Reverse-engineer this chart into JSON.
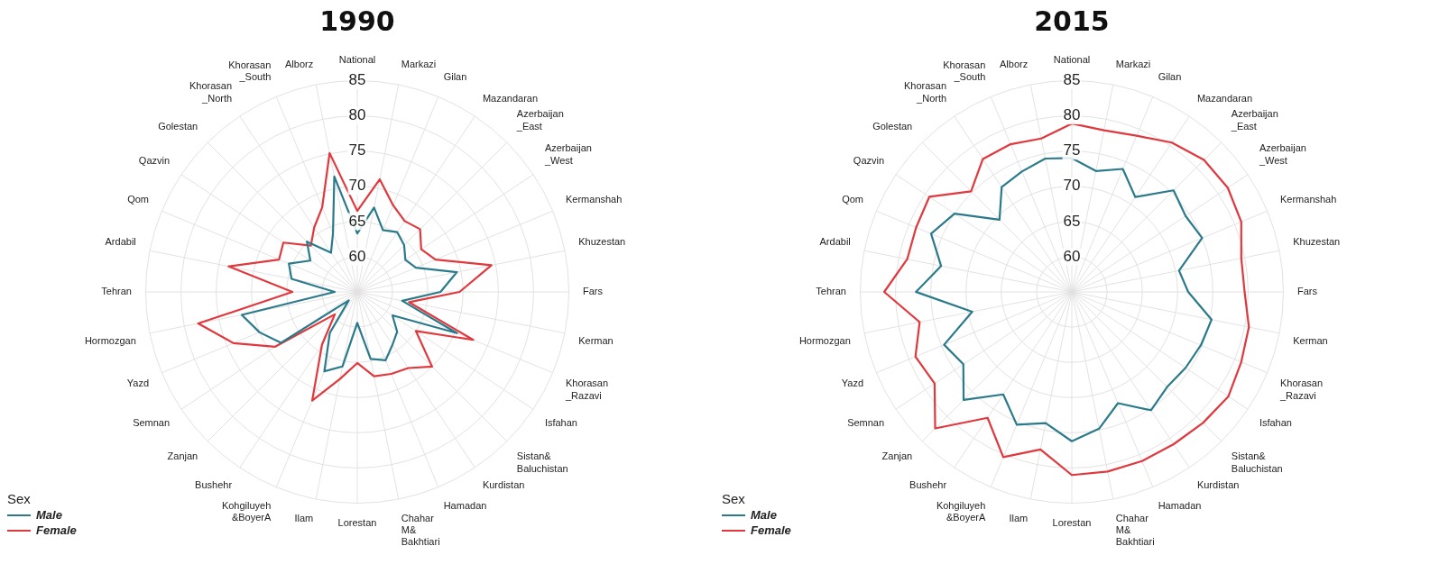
{
  "chart_data": [
    {
      "type": "radar",
      "title": "1990",
      "legend_title": "Sex",
      "legend": "bottom left",
      "grid": true,
      "ylim": [
        55,
        85
      ],
      "yticks": [
        60,
        65,
        70,
        75,
        80,
        85
      ],
      "categories": [
        "National",
        "Markazi",
        "Gilan",
        "Mazandaran",
        "Azerbaijan\n_East",
        "Azerbaijan\n_West",
        "Kermanshah",
        "Khuzestan",
        "Fars",
        "Kerman",
        "Khorasan\n_Razavi",
        "Isfahan",
        "Sistan&\nBaluchistan",
        "Kurdistan",
        "Hamadan",
        "Chahar\nM&\nBakhtiari",
        "Lorestan",
        "Ilam",
        "Kohgiluyeh\n&BoyerA",
        "Bushehr",
        "Zanjan",
        "Semnan",
        "Yazd",
        "Hormozgan",
        "Tehran",
        "Ardabil",
        "Qom",
        "Qazvin",
        "Golestan",
        "Khorasan\n_North",
        "Khorasan\n_South",
        "Alborz"
      ],
      "series": [
        {
          "name": "Male",
          "color": "#2b7a8b",
          "values": [
            63.3,
            67.2,
            64.5,
            65.2,
            64.4,
            63.2,
            64,
            69.4,
            66.8,
            61.5,
            70.3,
            61,
            63,
            64,
            65.5,
            64.7,
            59.4,
            65.8,
            67.2,
            62,
            56.7,
            68,
            70,
            71.7,
            58.2,
            64.5,
            65.5,
            63,
            65.1,
            61.7,
            64,
            71.7
          ]
        },
        {
          "name": "Female",
          "color": "#e0383d",
          "values": [
            66.5,
            71.3,
            68.3,
            67.1,
            67.6,
            65.9,
            67,
            74.4,
            69.5,
            62.5,
            72.8,
            65,
            70,
            68,
            67.6,
            67.2,
            65.1,
            67.6,
            71.7,
            64,
            59.5,
            69,
            74,
            78,
            64.2,
            73.6,
            67,
            67.6,
            64.3,
            66,
            68,
            75.1
          ]
        }
      ]
    },
    {
      "type": "radar",
      "title": "2015",
      "legend_title": "Sex",
      "legend": "bottom left",
      "grid": true,
      "ylim": [
        55,
        85
      ],
      "yticks": [
        60,
        65,
        70,
        75,
        80,
        85
      ],
      "categories": [
        "National",
        "Markazi",
        "Gilan",
        "Mazandaran",
        "Azerbaijan\n_East",
        "Azerbaijan\n_West",
        "Kermanshah",
        "Khuzestan",
        "Fars",
        "Kerman",
        "Khorasan\n_Razavi",
        "Isfahan",
        "Sistan&\nBaluchistan",
        "Kurdistan",
        "Hamadan",
        "Chahar\nM&\nBakhtiari",
        "Lorestan",
        "Ilam",
        "Kohgiluyeh\n&BoyerA",
        "Bushehr",
        "Zanjan",
        "Semnan",
        "Yazd",
        "Hormozgan",
        "Tehran",
        "Ardabil",
        "Qom",
        "Qazvin",
        "Golestan",
        "Khorasan\n_North",
        "Khorasan\n_South",
        "Alborz"
      ],
      "series": [
        {
          "name": "Male",
          "color": "#2b7a8b",
          "values": [
            74,
            72.5,
            73.9,
            71.2,
            75.4,
            74.4,
            75,
            70.5,
            71.5,
            75.2,
            74.8,
            74.4,
            74.1,
            75.2,
            72.1,
            74.8,
            76.2,
            74,
            75.4,
            72.5,
            76.7,
            73.5,
            74.6,
            69.4,
            77.1,
            73.9,
            76.6,
            75,
            69.5,
            72.9,
            73.5,
            74.3
          ]
        },
        {
          "name": "Female",
          "color": "#e0383d",
          "values": [
            78.9,
            78.4,
            79,
            80.5,
            81.5,
            81.6,
            81,
            79.5,
            79.5,
            80.6,
            81,
            81.7,
            81.3,
            81,
            81,
            81,
            81,
            77.8,
            80.4,
            76.5,
            82.4,
            78.4,
            79,
            77,
            81.6,
            78.8,
            78.9,
            79.3,
            75.2,
            77.7,
            77.7,
            77.2
          ]
        }
      ]
    }
  ]
}
